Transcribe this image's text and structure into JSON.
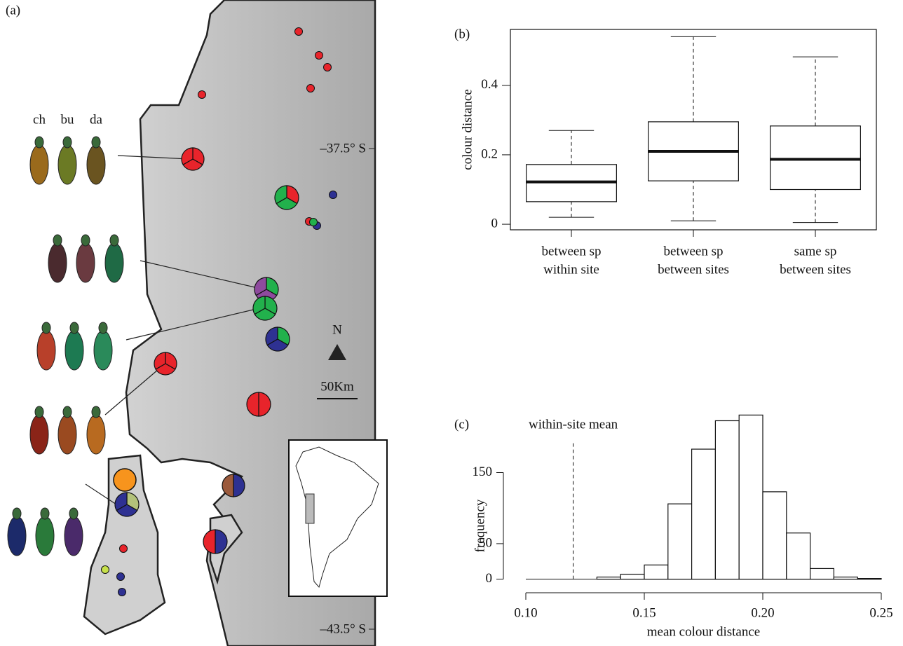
{
  "panel_a": {
    "label": "(a)",
    "beetle_labels": [
      "ch",
      "bu",
      "da"
    ],
    "latitudes": [
      "–37.5° S",
      "–43.5° S"
    ],
    "north": "N",
    "scale": "50Km"
  },
  "chart_data": [
    {
      "type": "box",
      "panel": "(b)",
      "ylabel": "colour distance",
      "categories": [
        [
          "between sp",
          "within site"
        ],
        [
          "between sp",
          "between sites"
        ],
        [
          "same sp",
          "between sites"
        ]
      ],
      "boxes": [
        {
          "low": 0.02,
          "q1": 0.065,
          "median": 0.122,
          "q3": 0.172,
          "high": 0.27
        },
        {
          "low": 0.01,
          "q1": 0.125,
          "median": 0.21,
          "q3": 0.295,
          "high": 0.54
        },
        {
          "low": 0.005,
          "q1": 0.1,
          "median": 0.187,
          "q3": 0.283,
          "high": 0.482
        }
      ],
      "ylim": [
        -0.016,
        0.561
      ],
      "yticks": [
        0,
        0.2,
        0.4
      ]
    },
    {
      "type": "histogram",
      "panel": "(c)",
      "xlabel": "mean colour distance",
      "ylabel": "frequency",
      "bins": [
        0.13,
        0.14,
        0.15,
        0.16,
        0.17,
        0.18,
        0.19,
        0.2,
        0.21,
        0.22,
        0.23,
        0.24,
        0.25
      ],
      "values": [
        3,
        7,
        20,
        106,
        183,
        223,
        231,
        123,
        65,
        15,
        3,
        1
      ],
      "reference_line": {
        "value": 0.12,
        "label": "within-site mean"
      },
      "xlim": [
        0.1,
        0.25
      ],
      "ylim": [
        -9.24,
        240.24
      ],
      "xticks": [
        {
          "value": 0.1,
          "label": "0.10"
        },
        {
          "value": 0.15,
          "label": "0.15"
        },
        {
          "value": 0.2,
          "label": "0.20"
        },
        {
          "value": 0.25,
          "label": "0.25"
        }
      ],
      "yticks": [
        0,
        50,
        150
      ]
    }
  ]
}
